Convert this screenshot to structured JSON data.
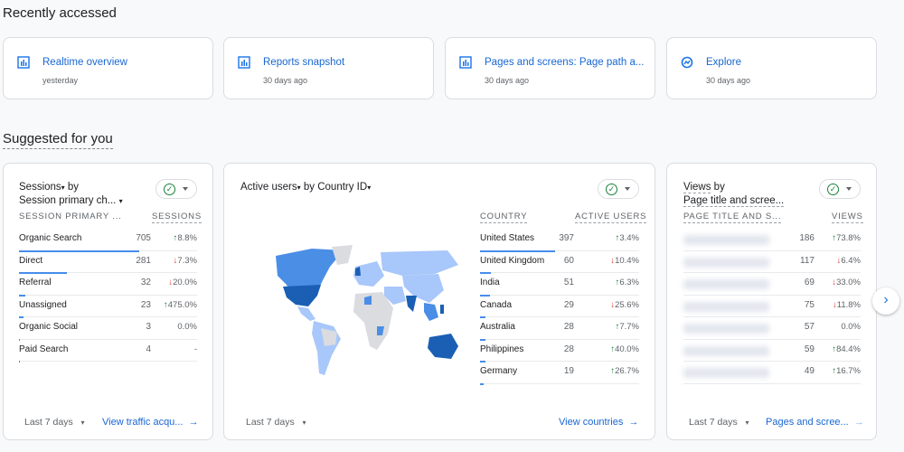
{
  "recently_accessed": {
    "heading": "Recently accessed",
    "items": [
      {
        "title": "Realtime overview",
        "subtitle": "yesterday",
        "icon": "bar-chart-icon"
      },
      {
        "title": "Reports snapshot",
        "subtitle": "30 days ago",
        "icon": "bar-chart-icon"
      },
      {
        "title": "Pages and screens: Page path a...",
        "subtitle": "30 days ago",
        "icon": "bar-chart-icon"
      },
      {
        "title": "Explore",
        "subtitle": "30 days ago",
        "icon": "explore-icon"
      }
    ]
  },
  "suggested": {
    "heading": "Suggested for you",
    "sessions": {
      "metric": "Sessions",
      "by": "by",
      "dimension": "Session primary ch...",
      "col1": "SESSION PRIMARY ...",
      "col2": "SESSIONS",
      "rows": [
        {
          "name": "Organic Search",
          "value": "705",
          "change": "8.8%",
          "dir": "up",
          "share": 1
        },
        {
          "name": "Direct",
          "value": "281",
          "change": "7.3%",
          "dir": "down",
          "share": 0.4
        },
        {
          "name": "Referral",
          "value": "32",
          "change": "20.0%",
          "dir": "down",
          "share": 0.05
        },
        {
          "name": "Unassigned",
          "value": "23",
          "change": "475.0%",
          "dir": "up",
          "share": 0.04
        },
        {
          "name": "Organic Social",
          "value": "3",
          "change": "0.0%",
          "dir": "none",
          "share": 0.005
        },
        {
          "name": "Paid Search",
          "value": "4",
          "change": "-",
          "dir": "none",
          "share": 0.006
        }
      ],
      "date_range": "Last 7 days",
      "link": "View traffic acqu..."
    },
    "countries": {
      "metric": "Active users",
      "by": "by",
      "dimension": "Country ID",
      "col1": "COUNTRY",
      "col2": "ACTIVE USERS",
      "rows": [
        {
          "name": "United States",
          "value": "397",
          "change": "3.4%",
          "dir": "up",
          "share": 1
        },
        {
          "name": "United Kingdom",
          "value": "60",
          "change": "10.4%",
          "dir": "down",
          "share": 0.15
        },
        {
          "name": "India",
          "value": "51",
          "change": "6.3%",
          "dir": "up",
          "share": 0.13
        },
        {
          "name": "Canada",
          "value": "29",
          "change": "25.6%",
          "dir": "down",
          "share": 0.07
        },
        {
          "name": "Australia",
          "value": "28",
          "change": "7.7%",
          "dir": "up",
          "share": 0.07
        },
        {
          "name": "Philippines",
          "value": "28",
          "change": "40.0%",
          "dir": "up",
          "share": 0.07
        },
        {
          "name": "Germany",
          "value": "19",
          "change": "26.7%",
          "dir": "up",
          "share": 0.05
        }
      ],
      "date_range": "Last 7 days",
      "link": "View countries"
    },
    "views": {
      "metric": "Views",
      "by": "by",
      "dimension": "Page title and scree...",
      "col1": "PAGE TITLE AND S...",
      "col2": "VIEWS",
      "rows": [
        {
          "value": "186",
          "change": "73.8%",
          "dir": "up"
        },
        {
          "value": "117",
          "change": "6.4%",
          "dir": "down"
        },
        {
          "value": "69",
          "change": "33.0%",
          "dir": "down"
        },
        {
          "value": "75",
          "change": "11.8%",
          "dir": "down"
        },
        {
          "value": "57",
          "change": "0.0%",
          "dir": "none"
        },
        {
          "value": "59",
          "change": "84.4%",
          "dir": "up"
        },
        {
          "value": "49",
          "change": "16.7%",
          "dir": "up"
        }
      ],
      "date_range": "Last 7 days",
      "link": "Pages and scree..."
    }
  },
  "colors": {
    "accent": "#1a73e8",
    "up": "#188038",
    "down": "#d93025",
    "map_dark": "#1a5fb4",
    "map_mid": "#4a8ee6",
    "map_light": "#a8c7fa",
    "map_none": "#dadce0"
  }
}
